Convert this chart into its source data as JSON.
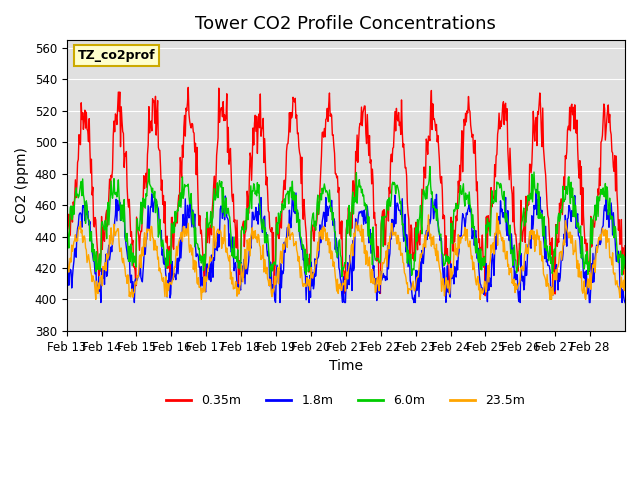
{
  "title": "Tower CO2 Profile Concentrations",
  "xlabel": "Time",
  "ylabel": "CO2 (ppm)",
  "ylim": [
    380,
    565
  ],
  "yticks": [
    380,
    400,
    420,
    440,
    460,
    480,
    500,
    520,
    540,
    560
  ],
  "x_labels": [
    "Feb 13",
    "Feb 14",
    "Feb 15",
    "Feb 16",
    "Feb 17",
    "Feb 18",
    "Feb 19",
    "Feb 20",
    "Feb 21",
    "Feb 22",
    "Feb 23",
    "Feb 24",
    "Feb 25",
    "Feb 26",
    "Feb 27",
    "Feb 28"
  ],
  "colors": {
    "0.35m": "#ff0000",
    "1.8m": "#0000ff",
    "6.0m": "#00cc00",
    "23.5m": "#ffa500"
  },
  "legend_labels": [
    "0.35m",
    "1.8m",
    "6.0m",
    "23.5m"
  ],
  "background_color": "#ffffff",
  "plot_bg_color": "#e0e0e0",
  "annotation_text": "TZ_co2prof",
  "annotation_bg": "#ffffcc",
  "annotation_border": "#ccaa00",
  "title_fontsize": 13,
  "axis_fontsize": 10,
  "tick_fontsize": 8.5
}
